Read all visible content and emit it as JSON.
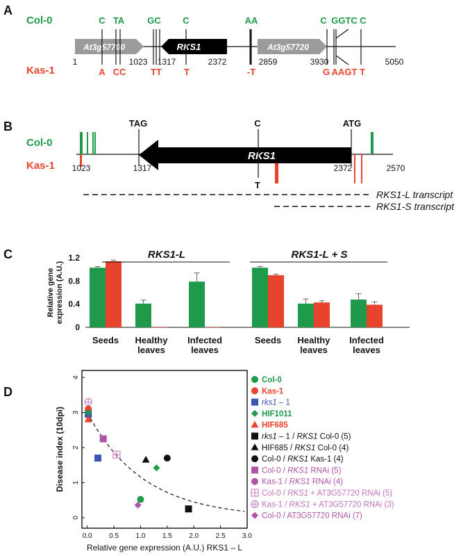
{
  "panelA": {
    "label": "A",
    "col_label": "Col-0",
    "kas_label": "Kas-1",
    "col_snps": [
      "C",
      "TA",
      "GC",
      "C",
      "AA",
      "C",
      "GGTC",
      "C"
    ],
    "kas_snps": [
      "A",
      "CC",
      "TT",
      "T",
      "-T",
      "G",
      "AAGT",
      "T"
    ],
    "genes": [
      "At3g57700",
      "RKS1",
      "At3g57720"
    ],
    "coords": [
      "1",
      "1023",
      "1317",
      "2372",
      "2859",
      "3930",
      "5050"
    ]
  },
  "panelB": {
    "label": "B",
    "col_label": "Col-0",
    "kas_label": "Kas-1",
    "gene": "RKS1",
    "codon_top": [
      "TAG",
      "C",
      "ATG"
    ],
    "codon_bottom": "T",
    "coords": [
      "1023",
      "1317",
      "2372",
      "2570"
    ],
    "transcripts": [
      "RKS1-L transcript",
      "RKS1-S transcript"
    ],
    "colors": {
      "col": "#1f9a4a",
      "kas": "#e8432d"
    }
  },
  "panelC": {
    "label": "C",
    "chart_data": {
      "type": "bar",
      "groups": [
        "RKS1-L",
        "RKS1-L + S"
      ],
      "categories": [
        "Seeds",
        "Healthy leaves",
        "Infected leaves",
        "Seeds",
        "Healthy leaves",
        "Infected leaves"
      ],
      "category_lines": [
        [
          "Seeds"
        ],
        [
          "Healthy",
          "leaves"
        ],
        [
          "Infected",
          "leaves"
        ],
        [
          "Seeds"
        ],
        [
          "Healthy",
          "leaves"
        ],
        [
          "Infected",
          "leaves"
        ]
      ],
      "ylabel_lines": [
        "Relative gene",
        "expression (A.U.)"
      ],
      "ylim": [
        0,
        1.2
      ],
      "yticks": [
        "0",
        "0.4",
        "0.8",
        "1.2"
      ],
      "series": [
        {
          "color": "#1f9a4a",
          "values": [
            1.03,
            0.41,
            0.79,
            1.03,
            0.41,
            0.48
          ],
          "errors": [
            0.02,
            0.06,
            0.15,
            0.02,
            0.08,
            0.1
          ]
        },
        {
          "color": "#e8432d",
          "values": [
            1.14,
            0.0,
            0.0,
            0.9,
            0.43,
            0.39
          ],
          "errors": [
            0.02,
            0.0,
            0.0,
            0.02,
            0.03,
            0.05
          ]
        }
      ]
    }
  },
  "panelD": {
    "label": "D",
    "chart_data": {
      "type": "scatter",
      "xlabel": "Relative gene expression (A.U.) RKS1 – L",
      "ylabel": "Disease index (10dpi)",
      "xlim": [
        -0.1,
        3.0
      ],
      "ylim": [
        -0.3,
        4.2
      ],
      "xticks": [
        "0.0",
        "0.5",
        "1.0",
        "1.5",
        "2.0",
        "2.5",
        "3.0"
      ],
      "yticks": [
        "0",
        "1",
        "2",
        "3",
        "4"
      ],
      "trend": "dashed exponential decay",
      "points": [
        {
          "x": 0.02,
          "y": 3.05,
          "marker": "circle",
          "color": "#1f9a4a"
        },
        {
          "x": 0.02,
          "y": 3.1,
          "marker": "circle",
          "color": "#e8432d"
        },
        {
          "x": 0.02,
          "y": 2.95,
          "marker": "square",
          "color": "#3a53b5"
        },
        {
          "x": 0.02,
          "y": 3.0,
          "marker": "diamond",
          "color": "#1f9a4a"
        },
        {
          "x": 0.02,
          "y": 2.8,
          "marker": "triangle",
          "color": "#e8432d"
        },
        {
          "x": 1.9,
          "y": 0.25,
          "marker": "square",
          "color": "#111111"
        },
        {
          "x": 1.1,
          "y": 1.65,
          "marker": "triangle",
          "color": "#111111"
        },
        {
          "x": 1.5,
          "y": 1.7,
          "marker": "circle",
          "color": "#111111"
        },
        {
          "x": 0.3,
          "y": 2.25,
          "marker": "square",
          "color": "#b154a8"
        },
        {
          "x": 1.0,
          "y": 0.52,
          "marker": "circle",
          "color": "#1f9a4a"
        },
        {
          "x": 0.2,
          "y": 1.7,
          "marker": "square",
          "color": "#3a53b5"
        },
        {
          "x": 0.55,
          "y": 1.8,
          "marker": "square-cross",
          "color": "#c474bd"
        },
        {
          "x": 0.02,
          "y": 3.3,
          "marker": "circle-cross",
          "color": "#c474bd"
        },
        {
          "x": 1.3,
          "y": 1.42,
          "marker": "diamond",
          "color": "#1f9a4a"
        },
        {
          "x": 0.95,
          "y": 0.36,
          "marker": "diamond",
          "color": "#b154a8"
        }
      ],
      "legend": [
        {
          "marker": "circle",
          "color": "#1f9a4a",
          "parts": [
            {
              "t": "Col-0",
              "b": true
            }
          ]
        },
        {
          "marker": "circle",
          "color": "#e8432d",
          "parts": [
            {
              "t": "Kas-1",
              "b": true
            }
          ]
        },
        {
          "marker": "square",
          "color": "#3a53b5",
          "parts": [
            {
              "t": "rks1",
              "i": true
            },
            {
              "t": " – 1"
            }
          ]
        },
        {
          "marker": "diamond",
          "color": "#1f9a4a",
          "parts": [
            {
              "t": "HIF1011",
              "b": true
            }
          ]
        },
        {
          "marker": "triangle",
          "color": "#e8432d",
          "parts": [
            {
              "t": "HIF685",
              "b": true
            }
          ]
        },
        {
          "marker": "square",
          "color": "#111111",
          "parts": [
            {
              "t": "rks1",
              "i": true
            },
            {
              "t": " – 1 / "
            },
            {
              "t": "RKS1",
              "i": true
            },
            {
              "t": " Col-0 (5)"
            }
          ]
        },
        {
          "marker": "triangle",
          "color": "#111111",
          "parts": [
            {
              "t": "HIF685 / "
            },
            {
              "t": "RKS1",
              "i": true
            },
            {
              "t": " Col-0 (4)"
            }
          ]
        },
        {
          "marker": "circle",
          "color": "#111111",
          "parts": [
            {
              "t": "Col-0 / "
            },
            {
              "t": "RKS1",
              "i": true
            },
            {
              "t": " Kas-1 (4)"
            }
          ]
        },
        {
          "marker": "square",
          "color": "#b154a8",
          "parts": [
            {
              "t": "Col-0 / "
            },
            {
              "t": "RKS1",
              "i": true
            },
            {
              "t": " RNAi (5)"
            }
          ]
        },
        {
          "marker": "circle",
          "color": "#b154a8",
          "parts": [
            {
              "t": "Kas-1 / "
            },
            {
              "t": "RKS1",
              "i": true
            },
            {
              "t": " RNAi (4)"
            }
          ]
        },
        {
          "marker": "square-cross",
          "color": "#c474bd",
          "parts": [
            {
              "t": "Col-0 / "
            },
            {
              "t": "RKS1",
              "i": true
            },
            {
              "t": " + AT3G57720 RNAi (5)"
            }
          ]
        },
        {
          "marker": "circle-cross",
          "color": "#c474bd",
          "parts": [
            {
              "t": "Kas-1 / "
            },
            {
              "t": "RKS1",
              "i": true
            },
            {
              "t": " + AT3G57720 RNAi (3)"
            }
          ]
        },
        {
          "marker": "diamond",
          "color": "#b154a8",
          "parts": [
            {
              "t": "Col-0 / AT3G57720 RNAi (7)"
            }
          ]
        }
      ]
    }
  }
}
